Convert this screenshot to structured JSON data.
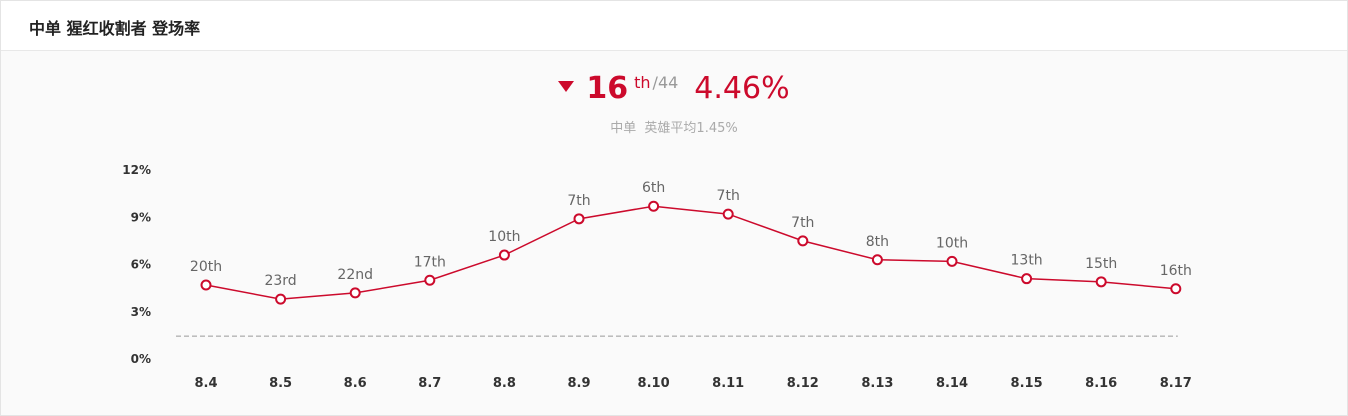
{
  "header": {
    "title": "中单 猩红收割者 登场率"
  },
  "summary": {
    "rank": "16",
    "rank_suffix": "th",
    "rank_total": "/44",
    "rate": "4.46%",
    "avg_role": "中单",
    "avg_label": "英雄平均1.45%"
  },
  "colors": {
    "accent": "#cc0a2c",
    "avg_line": "#999999"
  },
  "icons": {
    "trend": "triangle-down-icon"
  },
  "chart_data": {
    "type": "line",
    "categories": [
      "8.4",
      "8.5",
      "8.6",
      "8.7",
      "8.8",
      "8.9",
      "8.10",
      "8.11",
      "8.12",
      "8.13",
      "8.14",
      "8.15",
      "8.16",
      "8.17"
    ],
    "series": [
      {
        "values": [
          4.7,
          3.8,
          4.2,
          5.0,
          6.6,
          8.9,
          9.7,
          9.2,
          7.5,
          6.3,
          6.2,
          5.1,
          4.9,
          4.46
        ]
      }
    ],
    "point_labels": [
      "20th",
      "23rd",
      "22nd",
      "17th",
      "10th",
      "7th",
      "6th",
      "7th",
      "7th",
      "8th",
      "10th",
      "13th",
      "15th",
      "16th"
    ],
    "reference_line": 1.45,
    "yticks": [
      "0%",
      "3%",
      "6%",
      "9%",
      "12%"
    ],
    "ytick_values": [
      0,
      3,
      6,
      9,
      12
    ],
    "ylim": [
      0,
      12
    ],
    "grid": false,
    "legend": "none"
  }
}
